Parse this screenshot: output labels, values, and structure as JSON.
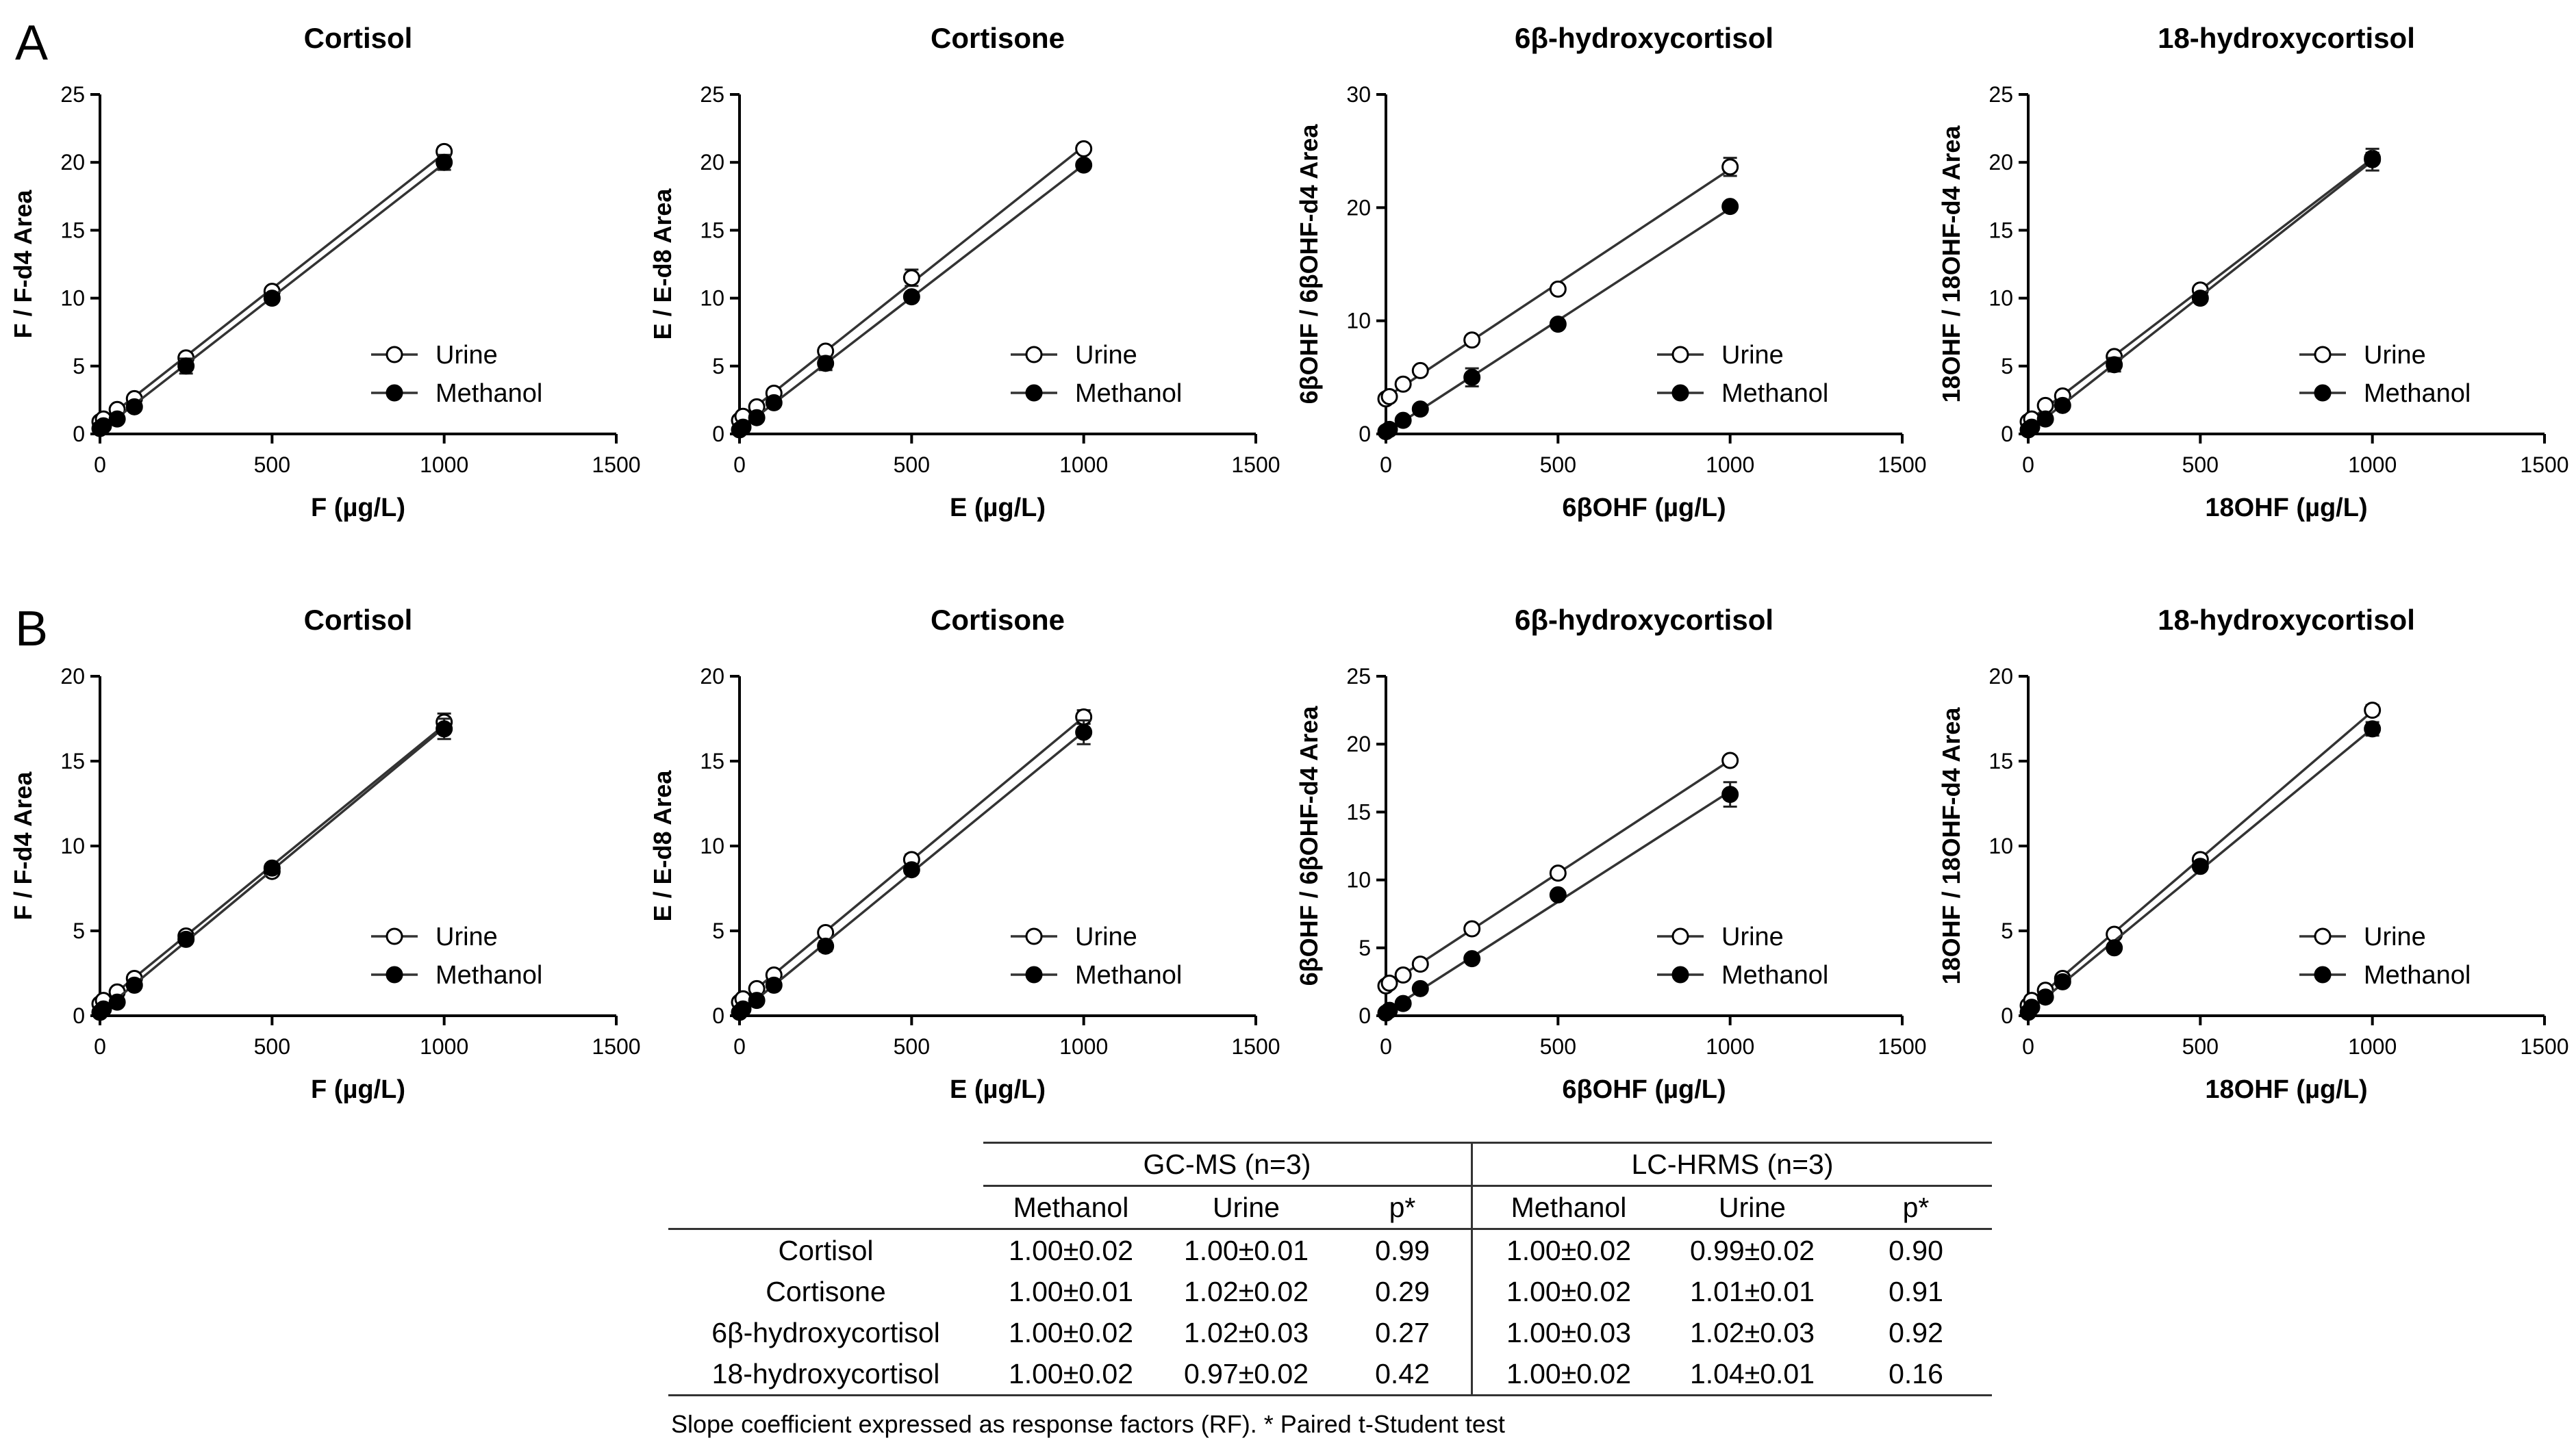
{
  "panels": [
    {
      "letter": "A"
    },
    {
      "letter": "B"
    }
  ],
  "chart_data": [
    {
      "panel": "A",
      "type": "scatter",
      "title": "Cortisol",
      "xlabel": "F (µg/L)",
      "ylabel": "F /  F-d4 Area",
      "xlim": [
        0,
        1500
      ],
      "ylim": [
        0,
        25
      ],
      "xticks": [
        0,
        500,
        1000,
        1500
      ],
      "yticks": [
        0,
        5,
        10,
        15,
        20,
        25
      ],
      "series": [
        {
          "name": "Urine",
          "marker": "open",
          "x": [
            0,
            10,
            50,
            100,
            250,
            500,
            1000
          ],
          "y": [
            0.9,
            1.1,
            1.8,
            2.6,
            5.6,
            10.5,
            20.8
          ],
          "err": [
            0.1,
            0.1,
            0.1,
            0.15,
            0.25,
            0.2,
            0.35
          ]
        },
        {
          "name": "Methanol",
          "marker": "filled",
          "x": [
            0,
            10,
            50,
            100,
            250,
            500,
            1000
          ],
          "y": [
            0.4,
            0.6,
            1.1,
            2.0,
            5.0,
            10.0,
            20.0
          ],
          "err": [
            0.1,
            0.1,
            0.1,
            0.15,
            0.55,
            0.3,
            0.55
          ]
        }
      ]
    },
    {
      "panel": "A",
      "type": "scatter",
      "title": "Cortisone",
      "xlabel": "E (µg/L)",
      "ylabel": "E /  E-d8 Area",
      "xlim": [
        0,
        1500
      ],
      "ylim": [
        0,
        25
      ],
      "xticks": [
        0,
        500,
        1000,
        1500
      ],
      "yticks": [
        0,
        5,
        10,
        15,
        20,
        25
      ],
      "series": [
        {
          "name": "Urine",
          "marker": "open",
          "x": [
            0,
            10,
            50,
            100,
            250,
            500,
            1000
          ],
          "y": [
            1.0,
            1.3,
            2.0,
            3.0,
            6.1,
            11.5,
            21.0
          ],
          "err": [
            0.1,
            0.1,
            0.1,
            0.15,
            0.3,
            0.6,
            0.25
          ]
        },
        {
          "name": "Methanol",
          "marker": "filled",
          "x": [
            0,
            10,
            50,
            100,
            250,
            500,
            1000
          ],
          "y": [
            0.3,
            0.5,
            1.2,
            2.3,
            5.2,
            10.1,
            19.8
          ],
          "err": [
            0.1,
            0.1,
            0.1,
            0.15,
            0.5,
            0.2,
            0.3
          ]
        }
      ]
    },
    {
      "panel": "A",
      "type": "scatter",
      "title": "6β-hydroxycortisol",
      "xlabel": "6βOHF (µg/L)",
      "ylabel": "6βOHF /  6βOHF-d4 Area",
      "xlim": [
        0,
        1500
      ],
      "ylim": [
        0,
        30
      ],
      "xticks": [
        0,
        500,
        1000,
        1500
      ],
      "yticks": [
        0,
        10,
        20,
        30
      ],
      "series": [
        {
          "name": "Urine",
          "marker": "open",
          "x": [
            0,
            10,
            50,
            100,
            250,
            500,
            1000
          ],
          "y": [
            3.1,
            3.3,
            4.4,
            5.6,
            8.3,
            12.8,
            23.6
          ],
          "err": [
            0.15,
            0.15,
            0.15,
            0.2,
            0.25,
            0.3,
            0.8
          ]
        },
        {
          "name": "Methanol",
          "marker": "filled",
          "x": [
            0,
            10,
            50,
            100,
            250,
            500,
            1000
          ],
          "y": [
            0.2,
            0.4,
            1.2,
            2.2,
            5.0,
            9.7,
            20.1
          ],
          "err": [
            0.1,
            0.1,
            0.15,
            0.2,
            0.8,
            0.3,
            0.3
          ]
        }
      ]
    },
    {
      "panel": "A",
      "type": "scatter",
      "title": "18-hydroxycortisol",
      "xlabel": "18OHF (µg/L)",
      "ylabel": "18OHF /  18OHF-d4 Area",
      "xlim": [
        0,
        1500
      ],
      "ylim": [
        0,
        25
      ],
      "xticks": [
        0,
        500,
        1000,
        1500
      ],
      "yticks": [
        0,
        5,
        10,
        15,
        20,
        25
      ],
      "series": [
        {
          "name": "Urine",
          "marker": "open",
          "x": [
            0,
            10,
            50,
            100,
            250,
            500,
            1000
          ],
          "y": [
            0.9,
            1.1,
            2.1,
            2.8,
            5.7,
            10.6,
            20.3
          ],
          "err": [
            0.1,
            0.1,
            0.1,
            0.15,
            0.3,
            0.2,
            0.4
          ]
        },
        {
          "name": "Methanol",
          "marker": "filled",
          "x": [
            0,
            10,
            50,
            100,
            250,
            500,
            1000
          ],
          "y": [
            0.3,
            0.5,
            1.1,
            2.1,
            5.1,
            10.0,
            20.2
          ],
          "err": [
            0.1,
            0.1,
            0.1,
            0.15,
            0.5,
            0.2,
            0.8
          ]
        }
      ]
    },
    {
      "panel": "B",
      "type": "scatter",
      "title": "Cortisol",
      "xlabel": "F (µg/L)",
      "ylabel": "F /  F-d4 Area",
      "xlim": [
        0,
        1500
      ],
      "ylim": [
        0,
        20
      ],
      "xticks": [
        0,
        500,
        1000,
        1500
      ],
      "yticks": [
        0,
        5,
        10,
        15,
        20
      ],
      "series": [
        {
          "name": "Urine",
          "marker": "open",
          "x": [
            0,
            10,
            50,
            100,
            250,
            500,
            1000
          ],
          "y": [
            0.7,
            0.9,
            1.4,
            2.2,
            4.7,
            8.5,
            17.3
          ],
          "err": [
            0.1,
            0.1,
            0.1,
            0.1,
            0.2,
            0.2,
            0.5
          ]
        },
        {
          "name": "Methanol",
          "marker": "filled",
          "x": [
            0,
            10,
            50,
            100,
            250,
            500,
            1000
          ],
          "y": [
            0.2,
            0.4,
            0.8,
            1.8,
            4.5,
            8.7,
            16.9
          ],
          "err": [
            0.1,
            0.1,
            0.1,
            0.15,
            0.25,
            0.2,
            0.6
          ]
        }
      ]
    },
    {
      "panel": "B",
      "type": "scatter",
      "title": "Cortisone",
      "xlabel": "E (µg/L)",
      "ylabel": "E /  E-d8 Area",
      "xlim": [
        0,
        1500
      ],
      "ylim": [
        0,
        20
      ],
      "xticks": [
        0,
        500,
        1000,
        1500
      ],
      "yticks": [
        0,
        5,
        10,
        15,
        20
      ],
      "series": [
        {
          "name": "Urine",
          "marker": "open",
          "x": [
            0,
            10,
            50,
            100,
            250,
            500,
            1000
          ],
          "y": [
            0.8,
            1.0,
            1.6,
            2.4,
            4.9,
            9.2,
            17.6
          ],
          "err": [
            0.1,
            0.1,
            0.1,
            0.1,
            0.2,
            0.3,
            0.4
          ]
        },
        {
          "name": "Methanol",
          "marker": "filled",
          "x": [
            0,
            10,
            50,
            100,
            250,
            500,
            1000
          ],
          "y": [
            0.2,
            0.4,
            0.9,
            1.8,
            4.1,
            8.6,
            16.7
          ],
          "err": [
            0.1,
            0.1,
            0.1,
            0.15,
            0.3,
            0.2,
            0.7
          ]
        }
      ]
    },
    {
      "panel": "B",
      "type": "scatter",
      "title": "6β-hydroxycortisol",
      "xlabel": "6βOHF (µg/L)",
      "ylabel": "6βOHF /  6βOHF-d4 Area",
      "xlim": [
        0,
        1500
      ],
      "ylim": [
        0,
        25
      ],
      "xticks": [
        0,
        500,
        1000,
        1500
      ],
      "yticks": [
        0,
        5,
        10,
        15,
        20,
        25
      ],
      "series": [
        {
          "name": "Urine",
          "marker": "open",
          "x": [
            0,
            10,
            50,
            100,
            250,
            500,
            1000
          ],
          "y": [
            2.2,
            2.4,
            3.0,
            3.8,
            6.4,
            10.5,
            18.8
          ],
          "err": [
            0.1,
            0.1,
            0.1,
            0.15,
            0.2,
            0.25,
            0.3
          ]
        },
        {
          "name": "Methanol",
          "marker": "filled",
          "x": [
            0,
            10,
            50,
            100,
            250,
            500,
            1000
          ],
          "y": [
            0.2,
            0.4,
            0.9,
            2.0,
            4.2,
            8.9,
            16.3
          ],
          "err": [
            0.1,
            0.1,
            0.1,
            0.15,
            0.25,
            0.25,
            0.9
          ]
        }
      ]
    },
    {
      "panel": "B",
      "type": "scatter",
      "title": "18-hydroxycortisol",
      "xlabel": "18OHF (µg/L)",
      "ylabel": "18OHF /  18OHF-d4 Area",
      "xlim": [
        0,
        1500
      ],
      "ylim": [
        0,
        20
      ],
      "xticks": [
        0,
        500,
        1000,
        1500
      ],
      "yticks": [
        0,
        5,
        10,
        15,
        20
      ],
      "series": [
        {
          "name": "Urine",
          "marker": "open",
          "x": [
            0,
            10,
            50,
            100,
            250,
            500,
            1000
          ],
          "y": [
            0.6,
            0.9,
            1.5,
            2.2,
            4.8,
            9.2,
            18.0
          ],
          "err": [
            0.1,
            0.1,
            0.1,
            0.1,
            0.2,
            0.2,
            0.3
          ]
        },
        {
          "name": "Methanol",
          "marker": "filled",
          "x": [
            0,
            10,
            50,
            100,
            250,
            500,
            1000
          ],
          "y": [
            0.2,
            0.5,
            1.1,
            2.0,
            4.0,
            8.8,
            16.9
          ],
          "err": [
            0.1,
            0.1,
            0.1,
            0.15,
            0.25,
            0.2,
            0.4
          ]
        }
      ]
    }
  ],
  "table": {
    "groups": [
      "GC-MS (n=3)",
      "LC-HRMS (n=3)"
    ],
    "subheaders": [
      "Methanol",
      "Urine",
      "p*",
      "Methanol",
      "Urine",
      "p*"
    ],
    "rows": [
      {
        "label": "Cortisol",
        "cells": [
          "1.00±0.02",
          "1.00±0.01",
          "0.99",
          "1.00±0.02",
          "0.99±0.02",
          "0.90"
        ]
      },
      {
        "label": "Cortisone",
        "cells": [
          "1.00±0.01",
          "1.02±0.02",
          "0.29",
          "1.00±0.02",
          "1.01±0.01",
          "0.91"
        ]
      },
      {
        "label": "6β-hydroxycortisol",
        "cells": [
          "1.00±0.02",
          "1.02±0.03",
          "0.27",
          "1.00±0.03",
          "1.02±0.03",
          "0.92"
        ]
      },
      {
        "label": "18-hydroxycortisol",
        "cells": [
          "1.00±0.02",
          "0.97±0.02",
          "0.42",
          "1.00±0.02",
          "1.04±0.01",
          "0.16"
        ]
      }
    ],
    "note": "Slope coefficient expressed as response factors (RF). * Paired t-Student test"
  }
}
